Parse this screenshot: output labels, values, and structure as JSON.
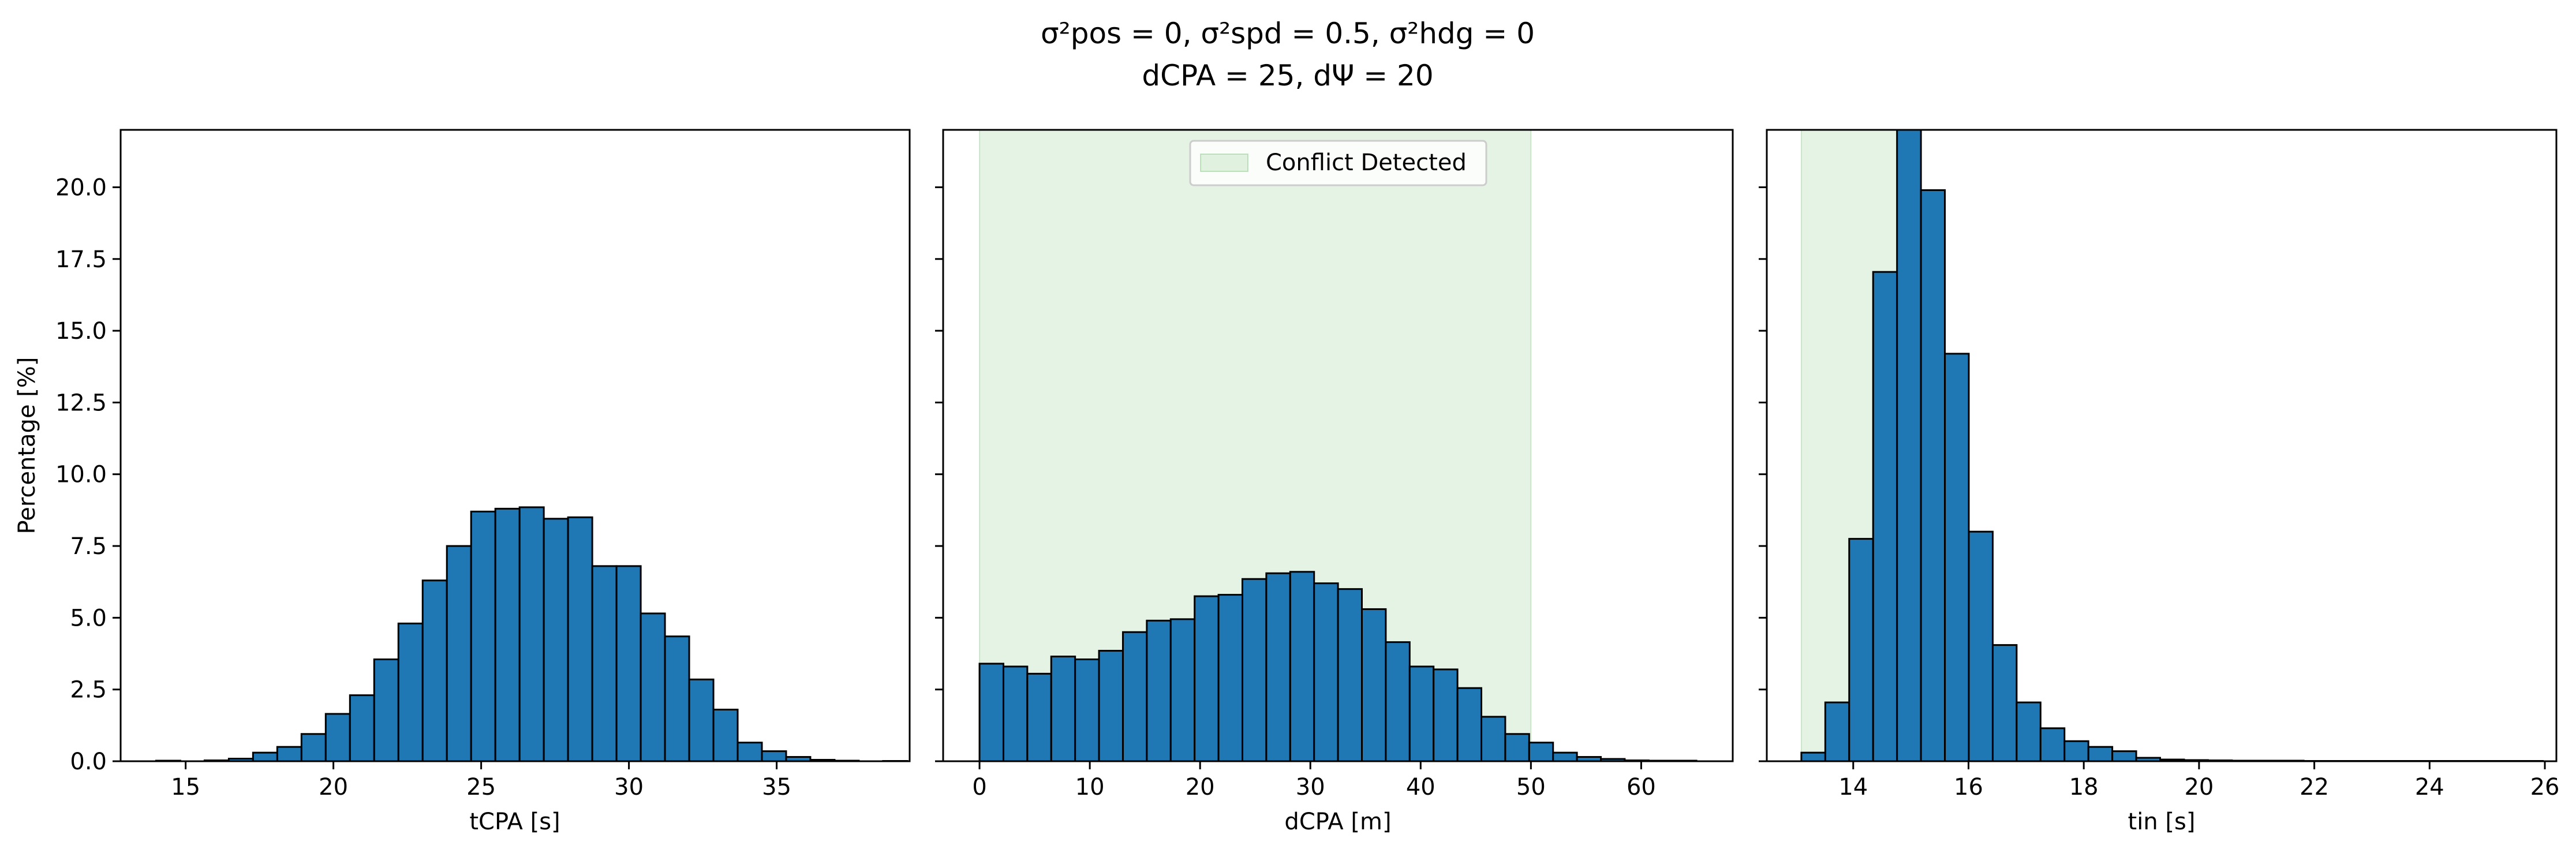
{
  "figure": {
    "title_line1": "σ²pos = 0, σ²spd = 0.5, σ²hdg = 0",
    "title_line2": "dCPA = 25, dΨ = 20"
  },
  "chart_data": [
    {
      "type": "bar",
      "subtype": "histogram",
      "xlabel": "tCPA [s]",
      "ylabel": "Percentage [%]",
      "xlim": [
        12.8,
        39.5
      ],
      "ylim": [
        0,
        22
      ],
      "xticks": [
        15,
        20,
        25,
        30,
        35
      ],
      "yticks": [
        0.0,
        2.5,
        5.0,
        7.5,
        10.0,
        12.5,
        15.0,
        17.5,
        20.0
      ],
      "bar_color": "#1f77b4",
      "bin_start": 14.0,
      "bin_width": 0.82,
      "values": [
        0.02,
        0.0,
        0.03,
        0.09,
        0.3,
        0.5,
        0.95,
        1.65,
        2.3,
        3.55,
        4.8,
        6.3,
        7.5,
        8.7,
        8.8,
        8.85,
        8.45,
        8.5,
        6.8,
        6.8,
        5.15,
        4.35,
        2.85,
        1.8,
        0.65,
        0.35,
        0.15,
        0.05,
        0.02,
        0.0,
        0.01
      ]
    },
    {
      "type": "bar",
      "subtype": "histogram",
      "xlabel": "dCPA [m]",
      "ylabel": "",
      "xlim": [
        -3.3,
        68.3
      ],
      "ylim": [
        0,
        22
      ],
      "xticks": [
        0,
        10,
        20,
        30,
        40,
        50,
        60
      ],
      "bar_color": "#1f77b4",
      "bin_start": 0.0,
      "bin_width": 2.167,
      "values": [
        3.4,
        3.3,
        3.05,
        3.65,
        3.55,
        3.85,
        4.5,
        4.9,
        4.95,
        5.75,
        5.8,
        6.35,
        6.55,
        6.6,
        6.2,
        6.0,
        5.3,
        4.15,
        3.3,
        3.2,
        2.55,
        1.55,
        0.95,
        0.65,
        0.3,
        0.15,
        0.08,
        0.03,
        0.02,
        0.02
      ],
      "shaded_region": {
        "x": [
          0,
          50
        ],
        "color": "#2ca02c",
        "opacity": 0.12,
        "label": "Conflict Detected"
      },
      "legend": {
        "entries": [
          "Conflict Detected"
        ],
        "position": "top-center"
      }
    },
    {
      "type": "bar",
      "subtype": "histogram",
      "xlabel": "tin [s]",
      "ylabel": "",
      "xlim": [
        12.5,
        26.2
      ],
      "ylim": [
        0,
        22
      ],
      "xticks": [
        14,
        16,
        18,
        20,
        22,
        24,
        26
      ],
      "bar_color": "#1f77b4",
      "bin_start": 13.1,
      "bin_width": 0.415,
      "values": [
        0.3,
        2.05,
        7.75,
        17.05,
        22.0,
        19.9,
        14.2,
        8.0,
        4.05,
        2.05,
        1.15,
        0.7,
        0.5,
        0.35,
        0.12,
        0.06,
        0.04,
        0.03,
        0.02,
        0.02,
        0.02,
        0.01,
        0.01,
        0.01,
        0.01,
        0.01,
        0.01,
        0.01,
        0.01,
        0.01,
        0.01
      ],
      "shaded_region": {
        "x": [
          13.1,
          14.8
        ],
        "color": "#2ca02c",
        "opacity": 0.12,
        "label": "Conflict Detected"
      }
    }
  ]
}
